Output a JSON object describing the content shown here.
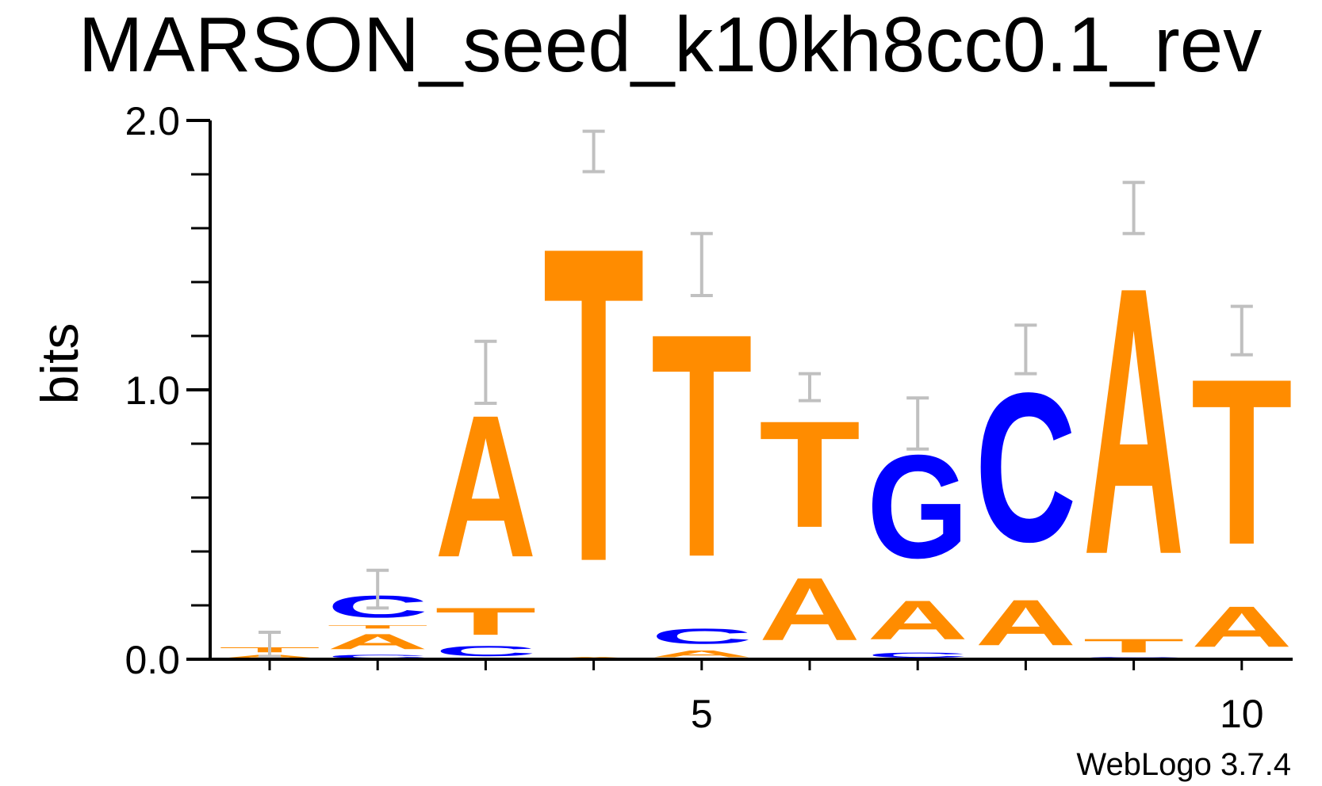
{
  "chart_data": {
    "type": "sequence-logo",
    "title": "MARSON_seed_k10kh8cc0.1_rev",
    "ylabel": "bits",
    "ylim": [
      0,
      2
    ],
    "y_ticks": [
      {
        "value": 0,
        "label": "0.0"
      },
      {
        "value": 1,
        "label": "1.0"
      },
      {
        "value": 2,
        "label": "2.0"
      }
    ],
    "y_minor_step": 0.2,
    "x_ticks": [
      {
        "position": 5,
        "label": "5"
      },
      {
        "position": 10,
        "label": "10"
      }
    ],
    "credit": "WebLogo 3.7.4",
    "colors": {
      "A": "#ff8c00",
      "T": "#ff8c00",
      "C": "#0000ff",
      "G": "#0000ff",
      "error_bar": "#c0c0c0",
      "axis": "#000000"
    },
    "positions": [
      {
        "pos": 1,
        "stack": [
          {
            "letter": "A",
            "height": 0.02
          },
          {
            "letter": "T",
            "height": 0.03
          }
        ],
        "error": [
          0.01,
          0.1
        ]
      },
      {
        "pos": 2,
        "stack": [
          {
            "letter": "C",
            "height": 0.02
          },
          {
            "letter": "A",
            "height": 0.09
          },
          {
            "letter": "T",
            "height": 0.02
          },
          {
            "letter": "C",
            "height": 0.13
          }
        ],
        "error": [
          0.19,
          0.33
        ]
      },
      {
        "pos": 3,
        "stack": [
          {
            "letter": "C",
            "height": 0.06
          },
          {
            "letter": "T",
            "height": 0.16
          },
          {
            "letter": "A",
            "height": 0.84
          }
        ],
        "error": [
          0.95,
          1.18
        ]
      },
      {
        "pos": 4,
        "stack": [
          {
            "letter": "A",
            "height": 0.01
          },
          {
            "letter": "T",
            "height": 1.86
          }
        ],
        "error": [
          1.81,
          1.96
        ]
      },
      {
        "pos": 5,
        "stack": [
          {
            "letter": "A",
            "height": 0.04
          },
          {
            "letter": "C",
            "height": 0.09
          },
          {
            "letter": "T",
            "height": 1.32
          }
        ],
        "error": [
          1.35,
          1.58
        ]
      },
      {
        "pos": 6,
        "stack": [
          {
            "letter": "A",
            "height": 0.37
          },
          {
            "letter": "T",
            "height": 0.63
          }
        ],
        "error": [
          0.96,
          1.06
        ]
      },
      {
        "pos": 7,
        "stack": [
          {
            "letter": "C",
            "height": 0.03
          },
          {
            "letter": "A",
            "height": 0.23
          },
          {
            "letter": "G",
            "height": 0.61
          }
        ],
        "error": [
          0.78,
          0.97
        ]
      },
      {
        "pos": 8,
        "stack": [
          {
            "letter": "A",
            "height": 0.27
          },
          {
            "letter": "C",
            "height": 0.88
          }
        ],
        "error": [
          1.06,
          1.24
        ]
      },
      {
        "pos": 9,
        "stack": [
          {
            "letter": "C",
            "height": 0.01
          },
          {
            "letter": "T",
            "height": 0.08
          },
          {
            "letter": "A",
            "height": 1.58
          }
        ],
        "error": [
          1.58,
          1.77
        ]
      },
      {
        "pos": 10,
        "stack": [
          {
            "letter": "A",
            "height": 0.24
          },
          {
            "letter": "T",
            "height": 0.98
          }
        ],
        "error": [
          1.13,
          1.31
        ]
      }
    ]
  }
}
